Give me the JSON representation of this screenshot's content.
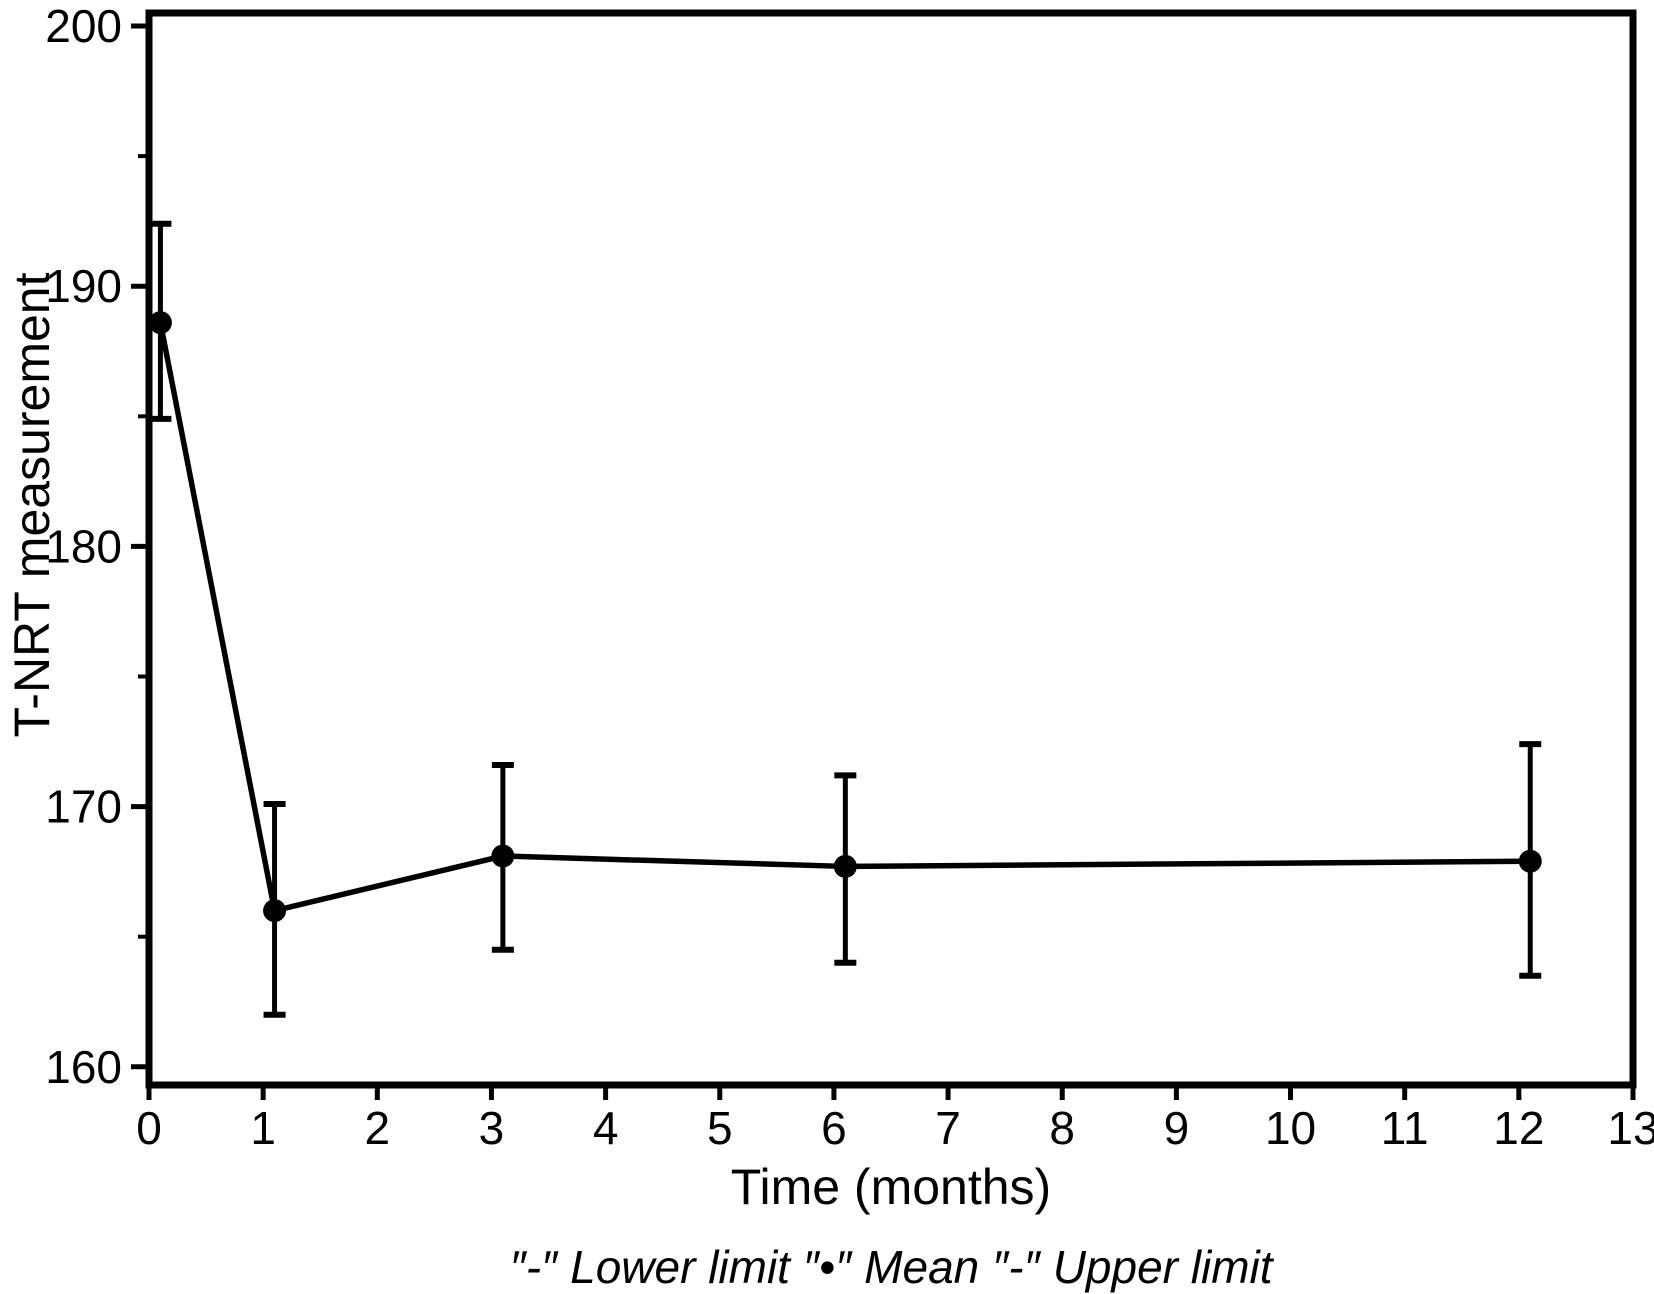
{
  "chart_data": {
    "type": "line",
    "title": "",
    "xlabel": "Time (months)",
    "ylabel": "T-NRT measurement",
    "caption": "″-″ Lower limit ″•″ Mean ″-″ Upper limit",
    "x": [
      0.1,
      1.1,
      3.1,
      6.1,
      12.1
    ],
    "series": [
      {
        "name": "Mean",
        "marker": "filled-circle",
        "values": [
          188.6,
          166.0,
          168.1,
          167.7,
          167.9
        ]
      },
      {
        "name": "Lower limit",
        "marker": "error-bar-cap",
        "values": [
          184.9,
          162.0,
          164.5,
          164.0,
          163.5
        ]
      },
      {
        "name": "Upper limit",
        "marker": "error-bar-cap",
        "values": [
          192.4,
          170.1,
          171.6,
          171.2,
          172.4
        ]
      }
    ],
    "xlim": [
      0,
      13
    ],
    "ylim": [
      159.3,
      200.5
    ],
    "x_ticks": [
      0,
      1,
      2,
      3,
      4,
      5,
      6,
      7,
      8,
      9,
      10,
      11,
      12,
      13
    ],
    "y_major_ticks": [
      160,
      170,
      180,
      190,
      200
    ],
    "y_minor_ticks": [
      165,
      175,
      185,
      195
    ],
    "grid": false,
    "legend_position": "caption-below-xlabel",
    "line_color": "#000000",
    "background_color": "#ffffff"
  }
}
